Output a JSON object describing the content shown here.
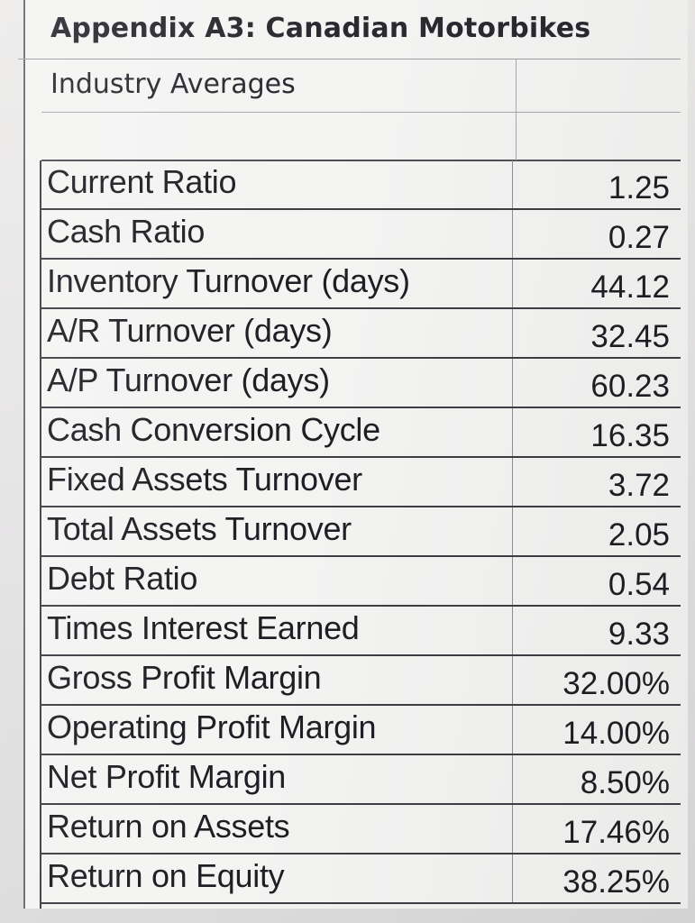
{
  "title": "Appendix A3: Canadian Motorbikes",
  "subtitle": "Industry Averages",
  "rows": [
    {
      "label": "Current Ratio",
      "value": "1.25"
    },
    {
      "label": "Cash Ratio",
      "value": "0.27"
    },
    {
      "label": "Inventory Turnover (days)",
      "value": "44.12"
    },
    {
      "label": "A/R Turnover (days)",
      "value": "32.45"
    },
    {
      "label": "A/P Turnover (days)",
      "value": "60.23"
    },
    {
      "label": "Cash Conversion Cycle",
      "value": "16.35"
    },
    {
      "label": "Fixed Assets Turnover",
      "value": "3.72"
    },
    {
      "label": "Total Assets Turnover",
      "value": "2.05"
    },
    {
      "label": "Debt Ratio",
      "value": "0.54"
    },
    {
      "label": "Times Interest Earned",
      "value": "9.33"
    },
    {
      "label": "Gross Profit Margin",
      "value": "32.00%"
    },
    {
      "label": "Operating Profit Margin",
      "value": "14.00%"
    },
    {
      "label": "Net Profit Margin",
      "value": "8.50%"
    },
    {
      "label": "Return on Assets",
      "value": "17.46%"
    },
    {
      "label": "Return on Equity",
      "value": "38.25%"
    }
  ]
}
